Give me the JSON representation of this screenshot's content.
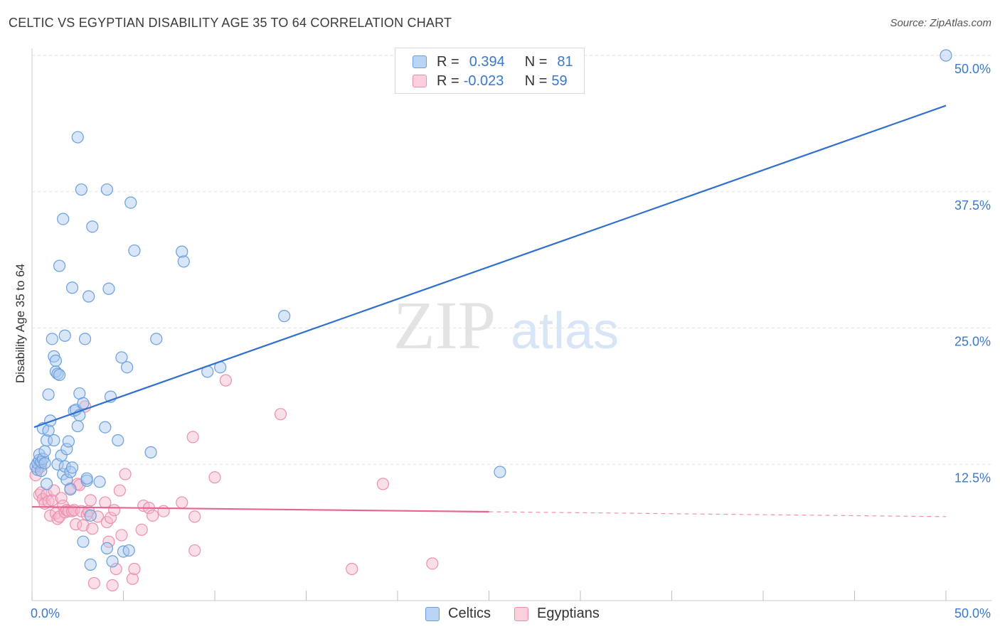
{
  "title": "CELTIC VS EGYPTIAN DISABILITY AGE 35 TO 64 CORRELATION CHART",
  "source": "Source: ZipAtlas.com",
  "watermark": {
    "zip": "ZIP",
    "atlas": "atlas"
  },
  "legend": {
    "celtic": {
      "r_label": "R =",
      "r_value": "0.394",
      "n_label": "N =",
      "n_value": "81"
    },
    "egyptian": {
      "r_label": "R =",
      "r_value": "-0.023",
      "n_label": "N =",
      "n_value": "59"
    }
  },
  "colors": {
    "celtic_fill": "#a8c8f0",
    "celtic_stroke": "#6a9fdc",
    "celtic_line": "#2f6fce",
    "egyptian_fill": "#f6b8cb",
    "egyptian_stroke": "#ec8fae",
    "egyptian_line": "#e8638f",
    "grid": "#e2e2e2",
    "axis_text": "#3b78c9"
  },
  "chart_data": {
    "type": "scatter",
    "title": "CELTIC VS EGYPTIAN DISABILITY AGE 35 TO 64 CORRELATION CHART",
    "xlabel": "",
    "ylabel": "Disability Age 35 to 64",
    "xlim": [
      0,
      50
    ],
    "ylim": [
      0,
      50
    ],
    "x_tick_labels": [
      "0.0%",
      "50.0%"
    ],
    "y_tick_labels": [
      "12.5%",
      "25.0%",
      "37.5%",
      "50.0%"
    ],
    "y_ticks": [
      12.5,
      25.0,
      37.5,
      50.0
    ],
    "series": [
      {
        "name": "Celtics",
        "trend": {
          "x": [
            0,
            50
          ],
          "y": [
            15.9,
            45.4
          ],
          "dashed_from": null
        },
        "points": [
          [
            0.2,
            12.3
          ],
          [
            0.3,
            12.0
          ],
          [
            0.3,
            12.6
          ],
          [
            0.4,
            12.9
          ],
          [
            0.4,
            13.4
          ],
          [
            0.5,
            11.9
          ],
          [
            0.5,
            12.7
          ],
          [
            0.6,
            13.0
          ],
          [
            0.6,
            15.8
          ],
          [
            0.7,
            12.6
          ],
          [
            0.7,
            13.7
          ],
          [
            0.8,
            10.7
          ],
          [
            0.8,
            14.7
          ],
          [
            0.9,
            15.6
          ],
          [
            0.9,
            18.9
          ],
          [
            1.0,
            16.5
          ],
          [
            1.1,
            24.0
          ],
          [
            1.2,
            14.7
          ],
          [
            1.2,
            22.4
          ],
          [
            1.3,
            21.0
          ],
          [
            1.3,
            22.0
          ],
          [
            1.4,
            12.5
          ],
          [
            1.4,
            20.8
          ],
          [
            1.5,
            20.7
          ],
          [
            1.5,
            30.7
          ],
          [
            1.6,
            13.3
          ],
          [
            1.7,
            11.6
          ],
          [
            1.7,
            35.0
          ],
          [
            1.8,
            12.3
          ],
          [
            1.8,
            24.3
          ],
          [
            1.9,
            11.1
          ],
          [
            1.9,
            13.9
          ],
          [
            2.0,
            14.6
          ],
          [
            2.1,
            10.2
          ],
          [
            2.1,
            11.8
          ],
          [
            2.2,
            12.2
          ],
          [
            2.2,
            28.7
          ],
          [
            2.3,
            17.4
          ],
          [
            2.4,
            17.5
          ],
          [
            2.5,
            16.0
          ],
          [
            2.5,
            42.5
          ],
          [
            2.6,
            17.0
          ],
          [
            2.6,
            19.0
          ],
          [
            2.7,
            37.7
          ],
          [
            2.8,
            18.1
          ],
          [
            2.8,
            5.4
          ],
          [
            2.9,
            24.0
          ],
          [
            3.0,
            11.0
          ],
          [
            3.0,
            11.2
          ],
          [
            3.1,
            27.9
          ],
          [
            3.2,
            7.8
          ],
          [
            3.2,
            3.3
          ],
          [
            3.3,
            34.3
          ],
          [
            3.7,
            10.9
          ],
          [
            4.0,
            15.9
          ],
          [
            4.1,
            37.7
          ],
          [
            4.1,
            4.8
          ],
          [
            4.2,
            28.6
          ],
          [
            4.3,
            18.7
          ],
          [
            4.4,
            3.6
          ],
          [
            4.7,
            14.7
          ],
          [
            4.9,
            22.3
          ],
          [
            5.0,
            4.5
          ],
          [
            5.2,
            21.4
          ],
          [
            5.3,
            4.6
          ],
          [
            5.4,
            36.5
          ],
          [
            5.6,
            32.1
          ],
          [
            6.5,
            13.6
          ],
          [
            6.8,
            24.0
          ],
          [
            8.2,
            32.0
          ],
          [
            8.3,
            31.1
          ],
          [
            9.6,
            21.0
          ],
          [
            10.3,
            21.4
          ],
          [
            13.8,
            26.1
          ],
          [
            25.6,
            11.8
          ],
          [
            50.0,
            50.0
          ]
        ]
      },
      {
        "name": "Egyptians",
        "trend": {
          "x": [
            0,
            50
          ],
          "y": [
            8.6,
            7.7
          ],
          "dashed_from": 25.0
        },
        "points": [
          [
            0.2,
            11.5
          ],
          [
            0.3,
            12.2
          ],
          [
            0.4,
            9.7
          ],
          [
            0.5,
            12.3
          ],
          [
            0.5,
            9.9
          ],
          [
            0.6,
            9.3
          ],
          [
            0.7,
            8.9
          ],
          [
            0.8,
            9.7
          ],
          [
            0.9,
            9.1
          ],
          [
            1.0,
            7.8
          ],
          [
            1.1,
            9.2
          ],
          [
            1.2,
            10.1
          ],
          [
            1.3,
            8.0
          ],
          [
            1.4,
            7.5
          ],
          [
            1.5,
            7.7
          ],
          [
            1.6,
            9.4
          ],
          [
            1.7,
            8.7
          ],
          [
            1.8,
            8.1
          ],
          [
            1.9,
            8.3
          ],
          [
            2.0,
            8.2
          ],
          [
            2.1,
            10.3
          ],
          [
            2.2,
            8.2
          ],
          [
            2.3,
            8.3
          ],
          [
            2.4,
            7.0
          ],
          [
            2.5,
            10.7
          ],
          [
            2.6,
            10.6
          ],
          [
            2.7,
            8.2
          ],
          [
            2.8,
            6.9
          ],
          [
            2.9,
            17.8
          ],
          [
            3.0,
            7.9
          ],
          [
            3.1,
            8.2
          ],
          [
            3.2,
            9.2
          ],
          [
            3.3,
            6.6
          ],
          [
            3.4,
            1.6
          ],
          [
            3.6,
            7.7
          ],
          [
            4.0,
            9.0
          ],
          [
            4.1,
            7.2
          ],
          [
            4.2,
            5.4
          ],
          [
            4.3,
            7.6
          ],
          [
            4.4,
            1.4
          ],
          [
            4.5,
            8.3
          ],
          [
            4.6,
            2.9
          ],
          [
            4.8,
            10.1
          ],
          [
            4.9,
            6.0
          ],
          [
            5.1,
            11.6
          ],
          [
            5.5,
            2.0
          ],
          [
            5.6,
            2.9
          ],
          [
            6.0,
            6.5
          ],
          [
            6.1,
            8.7
          ],
          [
            6.4,
            8.5
          ],
          [
            6.6,
            7.8
          ],
          [
            7.2,
            8.2
          ],
          [
            8.2,
            9.0
          ],
          [
            8.8,
            15.0
          ],
          [
            8.9,
            7.7
          ],
          [
            8.9,
            4.6
          ],
          [
            10.0,
            11.3
          ],
          [
            10.6,
            20.2
          ],
          [
            13.6,
            17.1
          ],
          [
            17.5,
            2.9
          ],
          [
            19.2,
            10.7
          ],
          [
            21.9,
            3.4
          ]
        ]
      }
    ]
  },
  "bottom_legend": {
    "celtics": "Celtics",
    "egyptians": "Egyptians"
  }
}
